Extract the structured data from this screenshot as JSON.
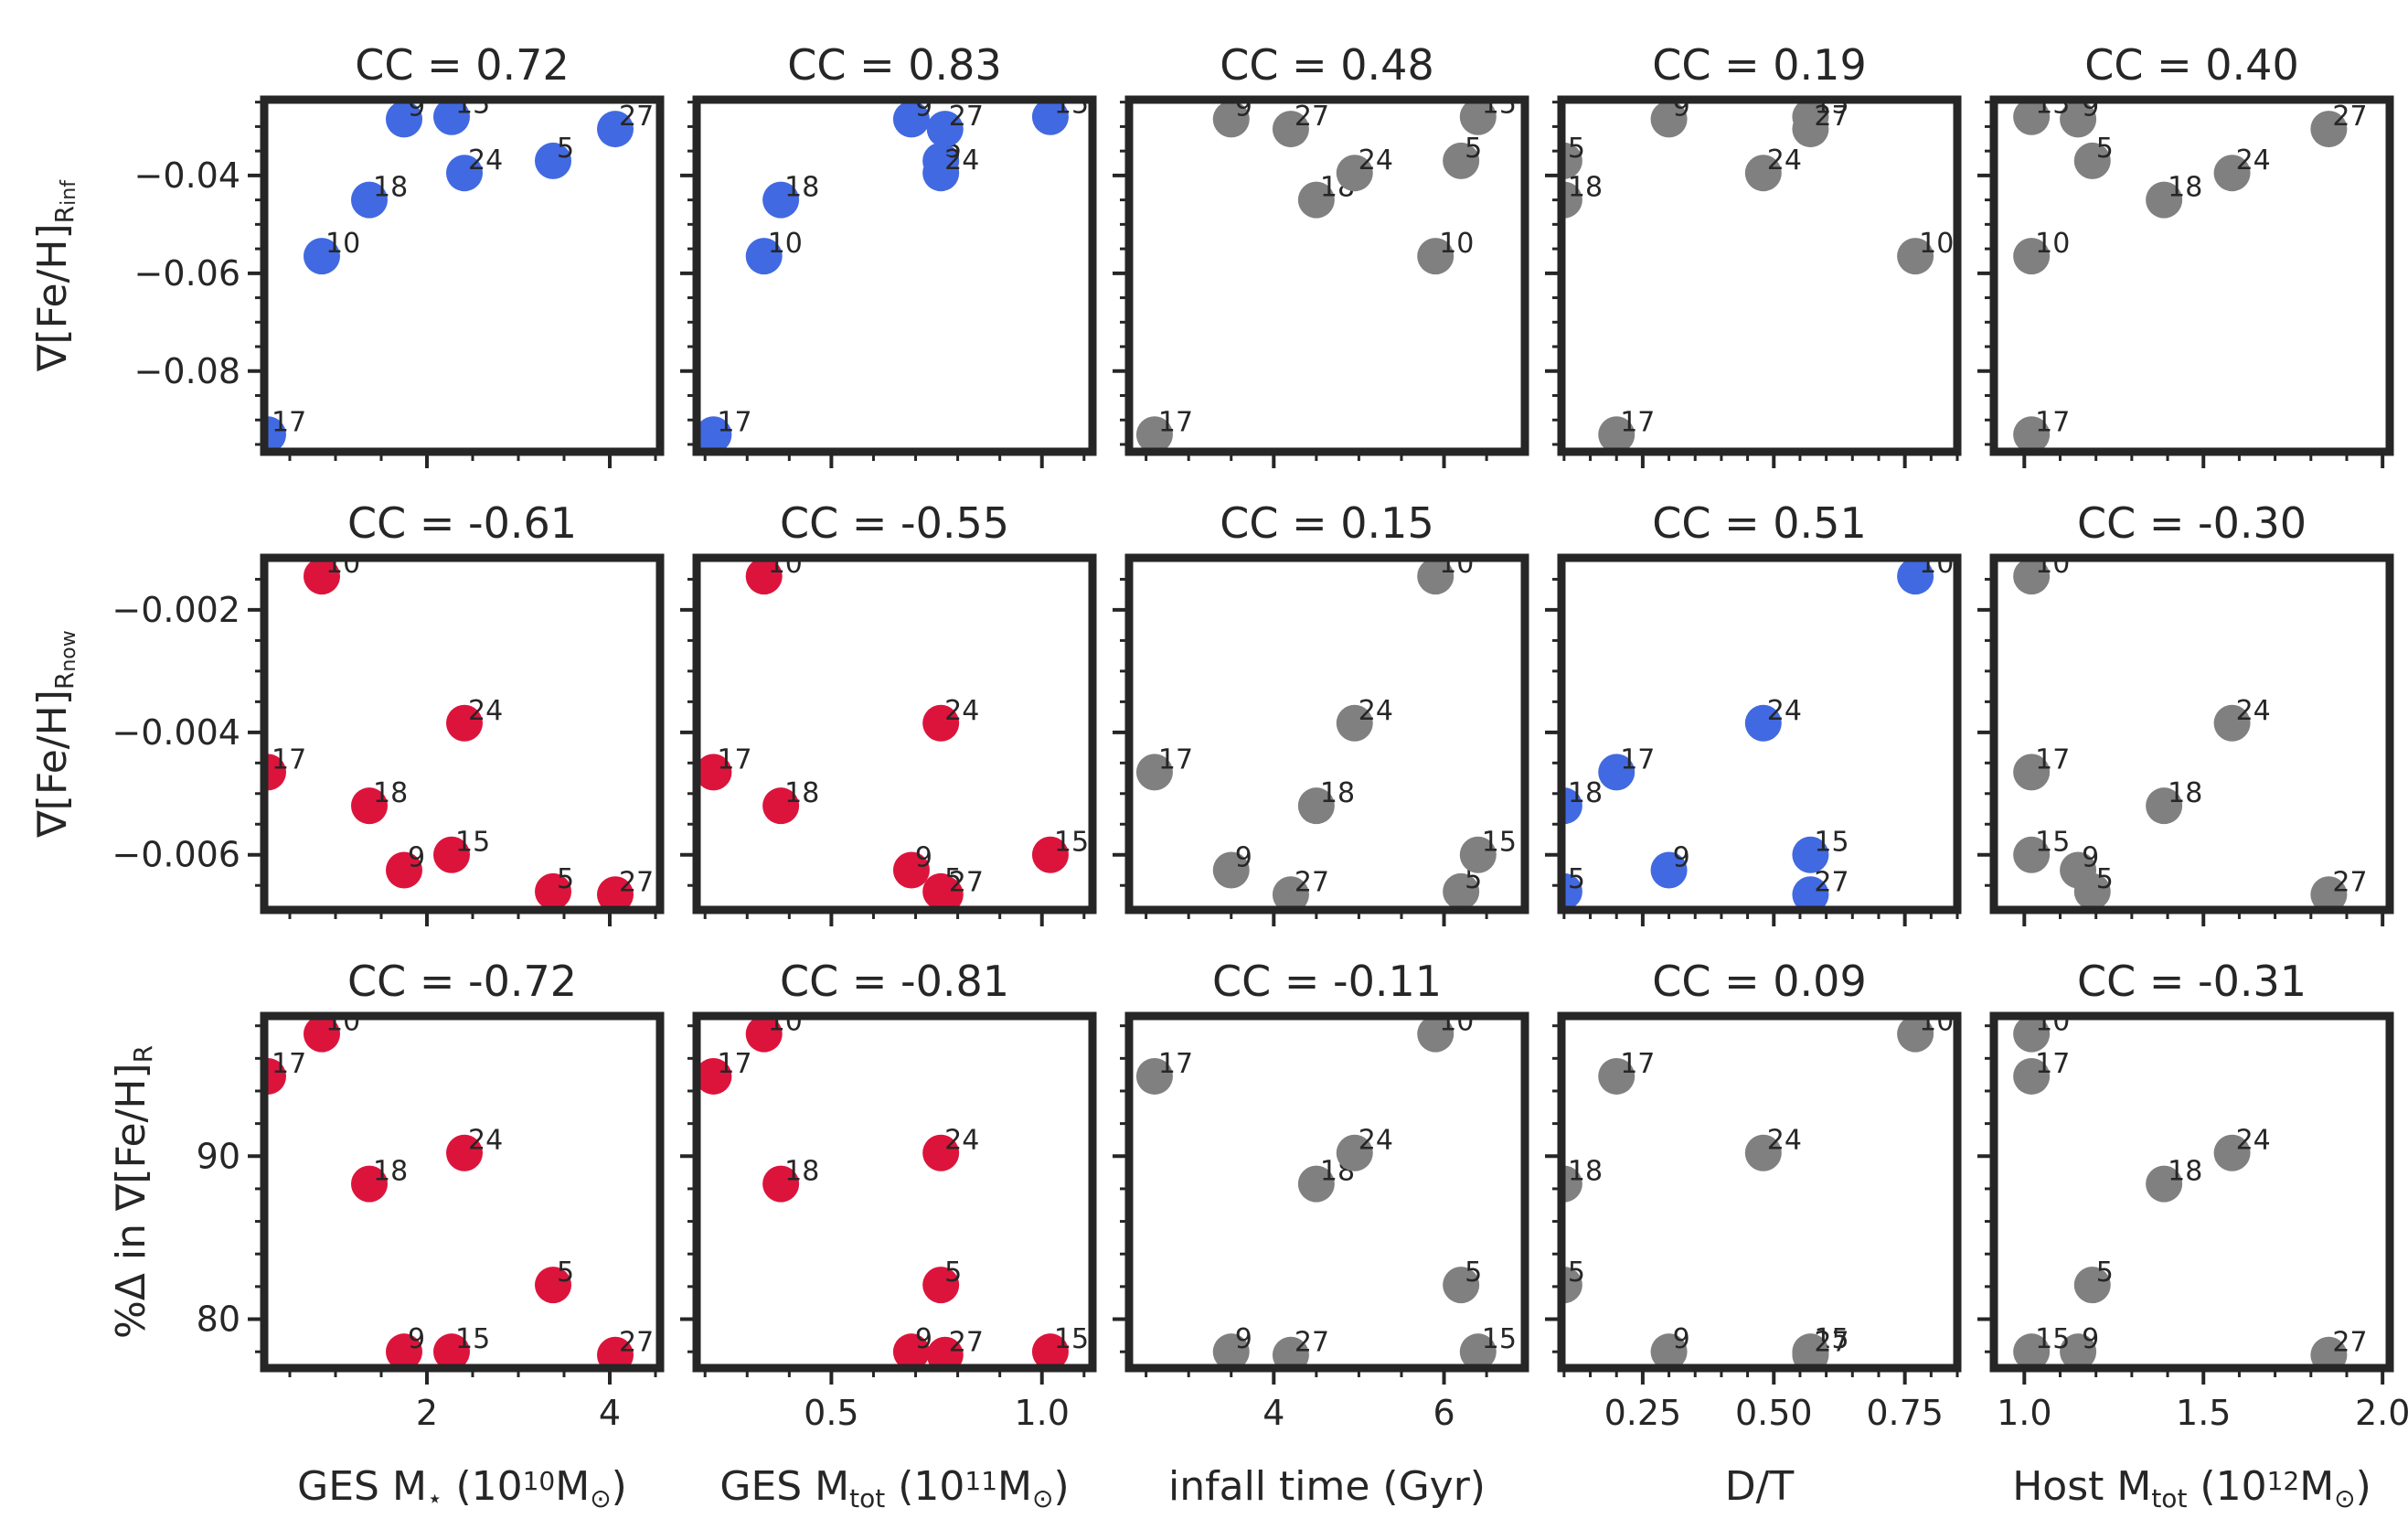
{
  "colors": {
    "positive": "#4169E1",
    "negative": "#DC143C",
    "neutral": "#808080",
    "frame": "#262626"
  },
  "chart_data": {
    "type": "scatter",
    "halo_ids": [
      "5",
      "9",
      "10",
      "15",
      "17",
      "18",
      "24",
      "27"
    ],
    "columns": [
      {
        "xlabel_parts": [
          {
            "t": "GES M"
          },
          {
            "t": "⋆",
            "sub": true
          },
          {
            "t": " (10"
          },
          {
            "t": "10",
            "sup": true
          },
          {
            "t": "M"
          },
          {
            "t": "⊙",
            "sub": true
          },
          {
            "t": ")"
          }
        ],
        "xlim": [
          0.22,
          4.55
        ],
        "xticks": [
          2,
          4
        ],
        "xtick_labels": [
          "2",
          "4"
        ],
        "xminor": 0.5,
        "x": {
          "5": 3.38,
          "9": 1.75,
          "10": 0.85,
          "15": 2.27,
          "17": 0.26,
          "18": 1.37,
          "24": 2.41,
          "27": 4.06
        }
      },
      {
        "xlabel_parts": [
          {
            "t": "GES M"
          },
          {
            "t": "tot",
            "sub": true
          },
          {
            "t": " (10"
          },
          {
            "t": "11",
            "sup": true
          },
          {
            "t": "M"
          },
          {
            "t": "⊙",
            "sub": true
          },
          {
            "t": ")"
          }
        ],
        "xlim": [
          0.18,
          1.12
        ],
        "xticks": [
          0.5,
          1.0
        ],
        "xtick_labels": [
          "0.5",
          "1.0"
        ],
        "xminor": 0.1,
        "x": {
          "5": 0.76,
          "9": 0.69,
          "10": 0.34,
          "15": 1.02,
          "17": 0.22,
          "18": 0.38,
          "24": 0.76,
          "27": 0.77
        }
      },
      {
        "xlabel_parts": [
          {
            "t": "infall time (Gyr)"
          }
        ],
        "xlim": [
          2.3,
          6.95
        ],
        "xticks": [
          4,
          6
        ],
        "xtick_labels": [
          "4",
          "6"
        ],
        "xminor": 0.5,
        "x": {
          "5": 6.2,
          "9": 3.5,
          "10": 5.9,
          "15": 6.4,
          "17": 2.6,
          "18": 4.5,
          "24": 4.95,
          "27": 4.2
        }
      },
      {
        "xlabel_parts": [
          {
            "t": "D/T"
          }
        ],
        "xlim": [
          0.095,
          0.85
        ],
        "xticks": [
          0.25,
          0.5,
          0.75
        ],
        "xtick_labels": [
          "0.25",
          "0.50",
          "0.75"
        ],
        "xminor": 0.05,
        "x": {
          "5": 0.1,
          "9": 0.3,
          "10": 0.77,
          "15": 0.57,
          "17": 0.2,
          "18": 0.1,
          "24": 0.48,
          "27": 0.57
        }
      },
      {
        "xlabel_parts": [
          {
            "t": "Host M"
          },
          {
            "t": "tot",
            "sub": true
          },
          {
            "t": " (10"
          },
          {
            "t": "12",
            "sup": true
          },
          {
            "t": "M"
          },
          {
            "t": "⊙",
            "sub": true
          },
          {
            "t": ")"
          }
        ],
        "xlim": [
          0.915,
          2.02
        ],
        "xticks": [
          1.0,
          1.5,
          2.0
        ],
        "xtick_labels": [
          "1.0",
          "1.5",
          "2.0"
        ],
        "xminor": 0.1,
        "x": {
          "5": 1.19,
          "9": 1.15,
          "10": 1.02,
          "15": 1.02,
          "17": 1.02,
          "18": 1.39,
          "24": 1.58,
          "27": 1.85
        }
      }
    ],
    "rows": [
      {
        "ylabel_parts": [
          {
            "t": "∇[Fe/H]"
          },
          {
            "t": "R",
            "sub": true
          },
          {
            "t": "inf",
            "sub2": true
          }
        ],
        "ylim": [
          -0.0965,
          -0.0245
        ],
        "yticks": [
          -0.04,
          -0.06,
          -0.08
        ],
        "ytick_labels": [
          "−0.04",
          "−0.06",
          "−0.08"
        ],
        "yminor": 0.005,
        "y": {
          "5": -0.037,
          "9": -0.0285,
          "10": -0.0565,
          "15": -0.028,
          "17": -0.093,
          "18": -0.045,
          "24": -0.0395,
          "27": -0.0305
        }
      },
      {
        "ylabel_parts": [
          {
            "t": "∇[Fe/H]"
          },
          {
            "t": "R",
            "sub": true
          },
          {
            "t": "now",
            "sub2": true
          }
        ],
        "ylim": [
          -0.0069,
          -0.00115
        ],
        "yticks": [
          -0.002,
          -0.004,
          -0.006
        ],
        "ytick_labels": [
          "−0.002",
          "−0.004",
          "−0.006"
        ],
        "yminor": 0.0005,
        "y": {
          "5": -0.0066,
          "9": -0.00625,
          "10": -0.00145,
          "15": -0.006,
          "17": -0.00465,
          "18": -0.0052,
          "24": -0.00385,
          "27": -0.00665
        }
      },
      {
        "ylabel_parts": [
          {
            "t": "%Δ in ∇[Fe/H]"
          },
          {
            "t": "R",
            "sub": true
          }
        ],
        "ylim": [
          77.0,
          98.6
        ],
        "yticks": [
          80,
          90
        ],
        "ytick_labels": [
          "80",
          "90"
        ],
        "yminor": 2,
        "y": {
          "5": 82.1,
          "9": 78.0,
          "10": 97.5,
          "15": 78.0,
          "17": 94.9,
          "18": 88.3,
          "24": 90.2,
          "27": 77.8
        }
      }
    ],
    "panels": [
      [
        {
          "cc": "CC = 0.72",
          "color": "positive"
        },
        {
          "cc": "CC = 0.83",
          "color": "positive"
        },
        {
          "cc": "CC = 0.48",
          "color": "neutral"
        },
        {
          "cc": "CC = 0.19",
          "color": "neutral"
        },
        {
          "cc": "CC = 0.40",
          "color": "neutral"
        }
      ],
      [
        {
          "cc": "CC = -0.61",
          "color": "negative"
        },
        {
          "cc": "CC = -0.55",
          "color": "negative"
        },
        {
          "cc": "CC = 0.15",
          "color": "neutral"
        },
        {
          "cc": "CC = 0.51",
          "color": "positive"
        },
        {
          "cc": "CC = -0.30",
          "color": "neutral"
        }
      ],
      [
        {
          "cc": "CC = -0.72",
          "color": "negative"
        },
        {
          "cc": "CC = -0.81",
          "color": "negative"
        },
        {
          "cc": "CC = -0.11",
          "color": "neutral"
        },
        {
          "cc": "CC = 0.09",
          "color": "neutral"
        },
        {
          "cc": "CC = -0.31",
          "color": "neutral"
        }
      ]
    ]
  }
}
